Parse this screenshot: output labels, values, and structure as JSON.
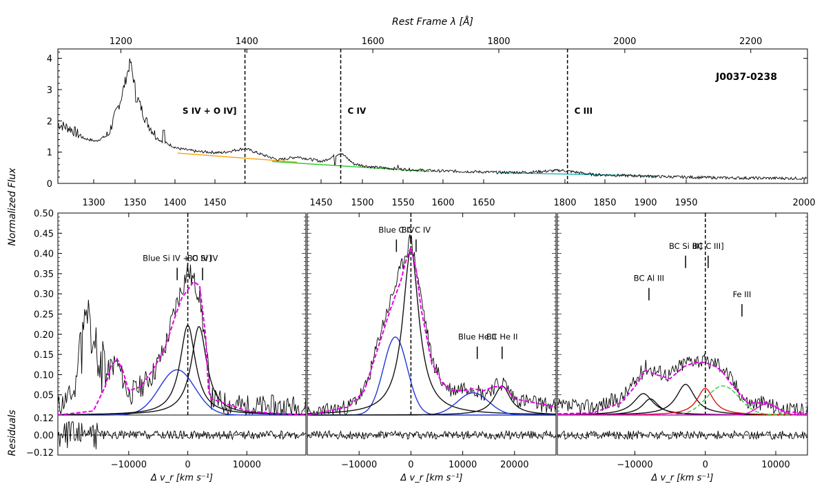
{
  "chart_data": {
    "type": "line",
    "top": {
      "title": "Rest Frame λ [Å]",
      "ylabel": "Normalized Flux",
      "object_name": "J0037-0238",
      "xlim": [
        1100,
        2290
      ],
      "ylim": [
        0,
        4.3
      ],
      "top_ticks": [
        "1200",
        "1400",
        "1600",
        "1800",
        "2000",
        "2200"
      ],
      "top_tick_values": [
        1200,
        1400,
        1600,
        1800,
        2000,
        2200
      ],
      "bottom_ticks": [
        "1300",
        "1350",
        "1400",
        "1450",
        "1450",
        "1500",
        "1550",
        "1600",
        "1650",
        "1800",
        "1850",
        "1900",
        "1950",
        "2000"
      ],
      "bottom_tick_values": [
        1300,
        1350,
        1400,
        1450,
        1450,
        1500,
        1550,
        1600,
        1650,
        1800,
        1850,
        1900,
        1950,
        2000
      ],
      "yticks": [
        "0",
        "1",
        "2",
        "3",
        "4"
      ],
      "ytick_values": [
        0,
        1,
        2,
        3,
        4
      ],
      "line_markers": [
        {
          "label": "S IV + O IV]",
          "x": 1397
        },
        {
          "label": "C IV",
          "x": 1549
        },
        {
          "label": "C III",
          "x": 1909
        }
      ],
      "spectrum": {
        "x": [
          1100,
          1120,
          1140,
          1160,
          1180,
          1200,
          1215,
          1225,
          1240,
          1260,
          1290,
          1320,
          1360,
          1397,
          1420,
          1450,
          1480,
          1520,
          1549,
          1570,
          1600,
          1650,
          1700,
          1750,
          1800,
          1850,
          1900,
          1950,
          2000,
          2050,
          2100,
          2150,
          2200,
          2290
        ],
        "y": [
          1.9,
          1.75,
          1.45,
          1.35,
          1.55,
          2.7,
          3.9,
          2.8,
          2.0,
          1.4,
          1.12,
          1.02,
          0.98,
          1.12,
          0.95,
          0.75,
          0.85,
          0.7,
          0.98,
          0.62,
          0.52,
          0.45,
          0.4,
          0.38,
          0.35,
          0.36,
          0.42,
          0.28,
          0.25,
          0.22,
          0.2,
          0.18,
          0.17,
          0.16
        ]
      },
      "continua": [
        {
          "name": "continuum-1",
          "color": "#ff9f00",
          "x": [
            1290,
            1480
          ],
          "y": [
            0.97,
            0.68
          ]
        },
        {
          "name": "continuum-2",
          "color": "#2ecc2e",
          "x": [
            1440,
            1690
          ],
          "y": [
            0.7,
            0.38
          ]
        },
        {
          "name": "continuum-3",
          "color": "#1fb5b5",
          "x": [
            1800,
            2050
          ],
          "y": [
            0.34,
            0.24
          ]
        }
      ]
    },
    "panels": [
      {
        "name": "si-iv-panel",
        "xlabel": "Δ v_r [km s⁻¹]",
        "xlim": [
          -22000,
          20000
        ],
        "ylim": [
          0,
          0.5
        ],
        "xticks": [
          "−10000",
          "0",
          "10000"
        ],
        "xtick_values": [
          -10000,
          0,
          10000
        ],
        "yticks": [
          "0.05",
          "0.10",
          "0.15",
          "0.20",
          "0.25",
          "0.30",
          "0.35",
          "0.40",
          "0.45",
          "0.50"
        ],
        "ytick_values": [
          0.05,
          0.1,
          0.15,
          0.2,
          0.25,
          0.3,
          0.35,
          0.4,
          0.45,
          0.5
        ],
        "residual_yticks": [
          "0.12",
          "0.00",
          "−0.12"
        ],
        "residual_ytick_values": [
          0.12,
          0.0,
          -0.12
        ],
        "annotations": [
          {
            "label": "Blue Si IV + O IV]",
            "x": -1800,
            "y": 0.385
          },
          {
            "label": "BC Si IV",
            "x": 2500,
            "y": 0.385
          }
        ],
        "components": [
          {
            "name": "blue-si-iv",
            "color": "#1f35d6",
            "kind": "gaussian",
            "center": -1800,
            "sigma": 3000,
            "amp": 0.112
          },
          {
            "name": "bc-si-iv-a",
            "color": "#111111",
            "kind": "lorentz",
            "center": 0,
            "width": 1600,
            "amp": 0.222
          },
          {
            "name": "bc-si-iv-b",
            "color": "#111111",
            "kind": "lorentz",
            "center": 1900,
            "width": 1600,
            "amp": 0.219
          }
        ],
        "total_fit_color": "#e600e6",
        "total_fit": {
          "x": [
            -22000,
            -16000,
            -14000,
            -13000,
            -12000,
            -11000,
            -10000,
            -8000,
            -6000,
            -4000,
            -2000,
            -1000,
            0,
            1000,
            2000,
            3000,
            3500,
            4000,
            6000,
            10000,
            14000,
            20000
          ],
          "y": [
            0,
            0.01,
            0.07,
            0.12,
            0.14,
            0.11,
            0.06,
            0.07,
            0.11,
            0.16,
            0.25,
            0.29,
            0.31,
            0.33,
            0.32,
            0.2,
            0.06,
            0.04,
            0.03,
            0.01,
            0.005,
            0.0
          ]
        },
        "observed": {
          "seed": 11,
          "x": [
            -22000,
            -19000,
            -17000,
            -15000,
            -13000,
            -12000,
            -10000,
            -8000,
            -6000,
            -4000,
            -2000,
            0,
            2000,
            4000,
            6000,
            10000,
            14000,
            20000
          ],
          "y": [
            0.02,
            0.06,
            0.18,
            0.06,
            0.12,
            0.13,
            0.05,
            0.07,
            0.1,
            0.16,
            0.27,
            0.36,
            0.3,
            0.04,
            0.03,
            0.02,
            0.02,
            0.02
          ],
          "noise": 0.03
        }
      },
      {
        "name": "c-iv-panel",
        "xlabel": "Δ v_r [km s⁻¹]",
        "xlim": [
          -20000,
          28000
        ],
        "ylim": [
          0,
          0.5
        ],
        "xticks": [
          "−10000",
          "0",
          "10000",
          "20000"
        ],
        "xtick_values": [
          -10000,
          0,
          10000,
          20000
        ],
        "annotations": [
          {
            "label": "Blue C IV",
            "x": -2800,
            "y": 0.455
          },
          {
            "label": "BC C IV",
            "x": 1000,
            "y": 0.455
          },
          {
            "label": "Blue He II",
            "x": 12800,
            "y": 0.19
          },
          {
            "label": "BC He II",
            "x": 17600,
            "y": 0.19
          }
        ],
        "components": [
          {
            "name": "blue-c-iv",
            "color": "#1f35d6",
            "kind": "gaussian",
            "center": -3000,
            "sigma": 2300,
            "amp": 0.193
          },
          {
            "name": "bc-c-iv",
            "color": "#111111",
            "kind": "lorentz",
            "center": 0,
            "width": 1900,
            "amp": 0.41
          },
          {
            "name": "blue-he-ii",
            "color": "#1f35d6",
            "kind": "gaussian",
            "center": 12000,
            "sigma": 3000,
            "amp": 0.055
          },
          {
            "name": "bc-he-ii",
            "color": "#111111",
            "kind": "lorentz",
            "center": 17600,
            "width": 1900,
            "amp": 0.072
          }
        ],
        "total_fit_color": "#e600e6",
        "total_fit": {
          "x": [
            -20000,
            -12000,
            -9000,
            -7500,
            -6000,
            -4000,
            -2000,
            -1000,
            0,
            1000,
            2000,
            4000,
            6000,
            8000,
            10000,
            12000,
            14000,
            16000,
            18000,
            20000,
            24000,
            28000
          ],
          "y": [
            0,
            0.02,
            0.06,
            0.12,
            0.18,
            0.26,
            0.33,
            0.38,
            0.415,
            0.36,
            0.26,
            0.13,
            0.08,
            0.06,
            0.06,
            0.065,
            0.06,
            0.07,
            0.07,
            0.04,
            0.03,
            0.02
          ]
        },
        "observed": {
          "seed": 23,
          "x": [
            -20000,
            -12000,
            -9000,
            -7500,
            -6000,
            -4000,
            -2000,
            0,
            2000,
            4000,
            6000,
            8000,
            10000,
            12000,
            14000,
            16000,
            18000,
            20000,
            24000,
            28000
          ],
          "y": [
            0.0,
            0.02,
            0.06,
            0.12,
            0.2,
            0.28,
            0.36,
            0.44,
            0.29,
            0.14,
            0.08,
            0.06,
            0.07,
            0.07,
            0.05,
            0.07,
            0.08,
            0.04,
            0.03,
            0.02
          ],
          "noise": 0.02
        }
      },
      {
        "name": "c-iii-panel",
        "xlabel": "Δ v_r [km s⁻¹]",
        "xlim": [
          -21000,
          14500
        ],
        "ylim": [
          0,
          0.5
        ],
        "xticks": [
          "−10000",
          "0",
          "10000"
        ],
        "xtick_values": [
          -10000,
          0,
          10000
        ],
        "annotations": [
          {
            "label": "BC Al III",
            "x": -8000,
            "y": 0.335
          },
          {
            "label": "BC Si III]",
            "x": -2800,
            "y": 0.415
          },
          {
            "label": "BC C III]",
            "x": 400,
            "y": 0.415
          },
          {
            "label": "Fe III",
            "x": 5200,
            "y": 0.295
          }
        ],
        "components": [
          {
            "name": "bc-al-iii-a",
            "color": "#111111",
            "kind": "lorentz",
            "center": -8800,
            "width": 1700,
            "amp": 0.053
          },
          {
            "name": "bc-al-iii-b",
            "color": "#111111",
            "kind": "lorentz",
            "center": -7800,
            "width": 1400,
            "amp": 0.04
          },
          {
            "name": "bc-si-iii",
            "color": "#111111",
            "kind": "lorentz",
            "center": -2800,
            "width": 1600,
            "amp": 0.076
          },
          {
            "name": "bc-c-iii",
            "color": "#e01010",
            "kind": "lorentz",
            "center": 0,
            "width": 1400,
            "amp": 0.066
          },
          {
            "name": "fe-iii",
            "color": "#2ecc2e",
            "kind": "gaussian",
            "center": 2500,
            "sigma": 2300,
            "amp": 0.072,
            "dashed": true
          },
          {
            "name": "fe-iii-b",
            "color": "#e600e6",
            "kind": "gaussian",
            "center": 8800,
            "sigma": 1500,
            "amp": 0.028
          }
        ],
        "total_fit_color": "#e600e6",
        "total_fit": {
          "x": [
            -21000,
            -16000,
            -12000,
            -10000,
            -8500,
            -7000,
            -5000,
            -3000,
            -1500,
            0,
            1500,
            2500,
            4000,
            6000,
            8800,
            11000,
            14500
          ],
          "y": [
            0.003,
            0.005,
            0.03,
            0.07,
            0.11,
            0.1,
            0.09,
            0.12,
            0.13,
            0.13,
            0.12,
            0.105,
            0.07,
            0.03,
            0.03,
            0.01,
            0.003
          ]
        },
        "observed": {
          "seed": 37,
          "x": [
            -21000,
            -16000,
            -12000,
            -10000,
            -8500,
            -7000,
            -5000,
            -3000,
            -1500,
            0,
            1500,
            2500,
            4000,
            6000,
            8800,
            11000,
            14500
          ],
          "y": [
            0.02,
            0.02,
            0.04,
            0.08,
            0.12,
            0.11,
            0.1,
            0.13,
            0.14,
            0.13,
            0.13,
            0.12,
            0.08,
            0.03,
            0.03,
            0.01,
            0.01
          ],
          "noise": 0.02
        }
      }
    ],
    "residuals": {
      "ylabel": "Residuals",
      "ylim": [
        -0.14,
        0.14
      ]
    }
  }
}
